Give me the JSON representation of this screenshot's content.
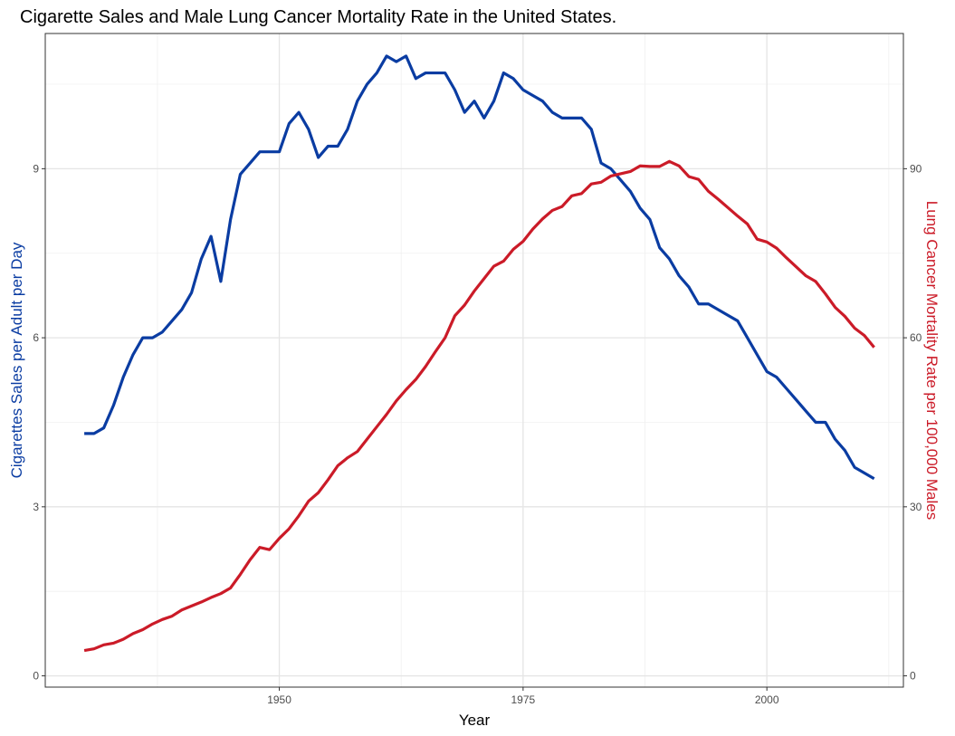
{
  "chart_data": {
    "type": "line",
    "title": "Cigarette Sales and Male Lung Cancer Mortality Rate in the United States.",
    "xlabel": "Year",
    "ylabel_left": "Cigarettes Sales per Adult per Day",
    "ylabel_right": "Lung Cancer Mortality Rate per 100,000 Males",
    "xlim": [
      1926,
      2014
    ],
    "ylim_left": [
      -0.2,
      11.4
    ],
    "ylim_right": [
      -2,
      114
    ],
    "x_ticks": [
      1950,
      1975,
      2000
    ],
    "y_ticks_left": [
      0,
      3,
      6,
      9
    ],
    "y_ticks_right": [
      0,
      30,
      60,
      90
    ],
    "grid": true,
    "colors": {
      "sales": "#0a3ca2",
      "mortality": "#cb1b28"
    },
    "series": [
      {
        "axis": "left",
        "x": [
          1930,
          1931,
          1932,
          1933,
          1934,
          1935,
          1936,
          1937,
          1938,
          1939,
          1940,
          1941,
          1942,
          1943,
          1944,
          1945,
          1946,
          1947,
          1948,
          1949,
          1950,
          1951,
          1952,
          1953,
          1954,
          1955,
          1956,
          1957,
          1958,
          1959,
          1960,
          1961,
          1962,
          1963,
          1964,
          1965,
          1966,
          1967,
          1968,
          1969,
          1970,
          1971,
          1972,
          1973,
          1974,
          1975,
          1976,
          1977,
          1978,
          1979,
          1980,
          1981,
          1982,
          1983,
          1984,
          1985,
          1986,
          1987,
          1988,
          1989,
          1990,
          1991,
          1992,
          1993,
          1994,
          1995,
          1996,
          1997,
          1998,
          1999,
          2000,
          2001,
          2002,
          2003,
          2004,
          2005,
          2006,
          2007,
          2008,
          2009,
          2010,
          2011
        ],
        "values": [
          4.3,
          4.3,
          4.4,
          4.8,
          5.3,
          5.7,
          6.0,
          6.0,
          6.1,
          6.3,
          6.5,
          6.8,
          7.4,
          7.8,
          7.0,
          8.1,
          8.9,
          9.1,
          9.3,
          9.3,
          9.3,
          9.8,
          10.0,
          9.7,
          9.2,
          9.4,
          9.4,
          9.7,
          10.2,
          10.5,
          10.7,
          11.0,
          10.9,
          11.0,
          10.6,
          10.7,
          10.7,
          10.7,
          10.4,
          10.0,
          10.2,
          9.9,
          10.2,
          10.7,
          10.6,
          10.4,
          10.3,
          10.2,
          10.0,
          9.9,
          9.9,
          9.9,
          9.7,
          9.1,
          9.0,
          8.8,
          8.6,
          8.3,
          8.1,
          7.6,
          7.4,
          7.1,
          6.9,
          6.6,
          6.6,
          6.5,
          6.4,
          6.3,
          6.0,
          5.7,
          5.4,
          5.3,
          5.1,
          4.9,
          4.7,
          4.5,
          4.5,
          4.2,
          4.0,
          3.7,
          3.6,
          3.5
        ]
      },
      {
        "axis": "right",
        "x": [
          1930,
          1931,
          1932,
          1933,
          1934,
          1935,
          1936,
          1937,
          1938,
          1939,
          1940,
          1941,
          1942,
          1943,
          1944,
          1945,
          1946,
          1947,
          1948,
          1949,
          1950,
          1951,
          1952,
          1953,
          1954,
          1955,
          1956,
          1957,
          1958,
          1959,
          1960,
          1961,
          1962,
          1963,
          1964,
          1965,
          1966,
          1967,
          1968,
          1969,
          1970,
          1971,
          1972,
          1973,
          1974,
          1975,
          1976,
          1977,
          1978,
          1979,
          1980,
          1981,
          1982,
          1983,
          1984,
          1985,
          1986,
          1987,
          1988,
          1989,
          1990,
          1991,
          1992,
          1993,
          1994,
          1995,
          1996,
          1997,
          1998,
          1999,
          2000,
          2001,
          2002,
          2003,
          2004,
          2005,
          2006,
          2007,
          2008,
          2009,
          2010,
          2011
        ],
        "values": [
          4.5,
          4.8,
          5.5,
          5.8,
          6.5,
          7.5,
          8.2,
          9.2,
          10.0,
          10.6,
          11.7,
          12.4,
          13.1,
          13.9,
          14.6,
          15.6,
          18.0,
          20.6,
          22.8,
          22.4,
          24.4,
          26.1,
          28.4,
          31.0,
          32.5,
          34.8,
          37.3,
          38.7,
          39.8,
          42.0,
          44.2,
          46.4,
          48.8,
          50.8,
          52.6,
          54.9,
          57.5,
          60.0,
          63.9,
          65.8,
          68.3,
          70.5,
          72.7,
          73.6,
          75.7,
          77.1,
          79.3,
          81.1,
          82.6,
          83.3,
          85.2,
          85.6,
          87.3,
          87.6,
          88.7,
          89.1,
          89.5,
          90.5,
          90.4,
          90.4,
          91.3,
          90.5,
          88.6,
          88.1,
          86.0,
          84.6,
          83.1,
          81.6,
          80.2,
          77.5,
          77.0,
          75.9,
          74.2,
          72.6,
          71.0,
          70.0,
          67.8,
          65.4,
          63.8,
          61.7,
          60.4,
          58.3
        ]
      }
    ]
  }
}
